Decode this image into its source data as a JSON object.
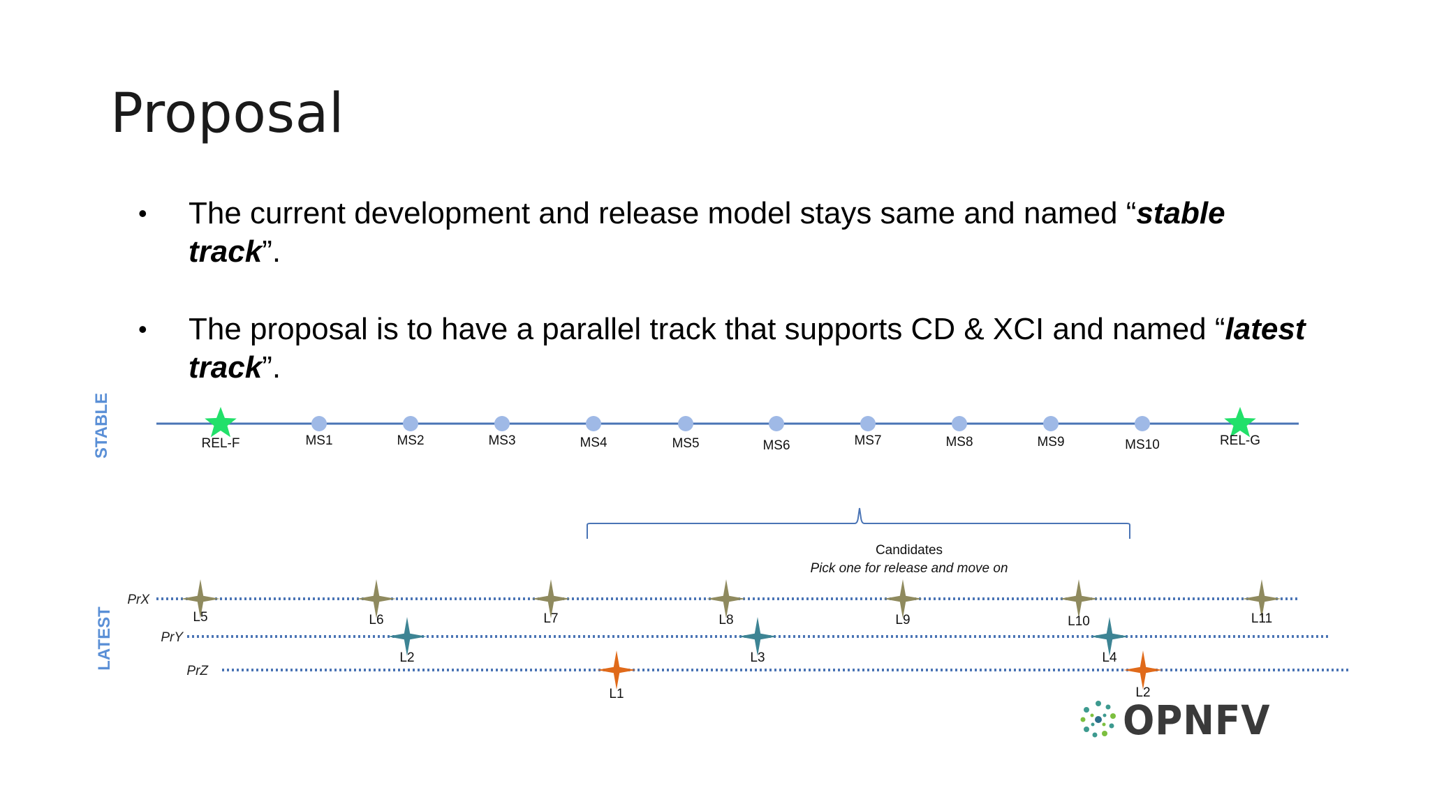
{
  "title": "Proposal",
  "bullets": [
    {
      "lead": "The current development and release model stays same and named “",
      "term": "stable track",
      "tail": "”."
    },
    {
      "lead": "The proposal is to have a parallel track that supports CD & XCI and named “",
      "term": "latest track",
      "tail": "”."
    }
  ],
  "diagram": {
    "stable_label": "STABLE",
    "latest_label": "LATEST",
    "stable_milestones": [
      "REL-F",
      "MS1",
      "MS2",
      "MS3",
      "MS4",
      "MS5",
      "MS6",
      "MS7",
      "MS8",
      "MS9",
      "MS10",
      "REL-G"
    ],
    "candidates_title": "Candidates",
    "candidates_subtitle": "Pick one for release and move on",
    "tracks": [
      {
        "name": "PrX",
        "color": "#8f8a5e",
        "points": [
          "L5",
          "L6",
          "L7",
          "L8",
          "L9",
          "L10",
          "L11"
        ]
      },
      {
        "name": "PrY",
        "color": "#3d8494",
        "points": [
          "L2",
          "L3",
          "L4"
        ]
      },
      {
        "name": "PrZ",
        "color": "#e06a1a",
        "points": [
          "L1",
          "L2"
        ]
      }
    ],
    "colors": {
      "line": "#4a74b5",
      "milestone": "#9fb9e6",
      "release_star": "#22e06a",
      "axis_label": "#5a8fd6"
    }
  },
  "logo": {
    "text": "OPNFV",
    "icon": "opnfv-flower-icon"
  }
}
